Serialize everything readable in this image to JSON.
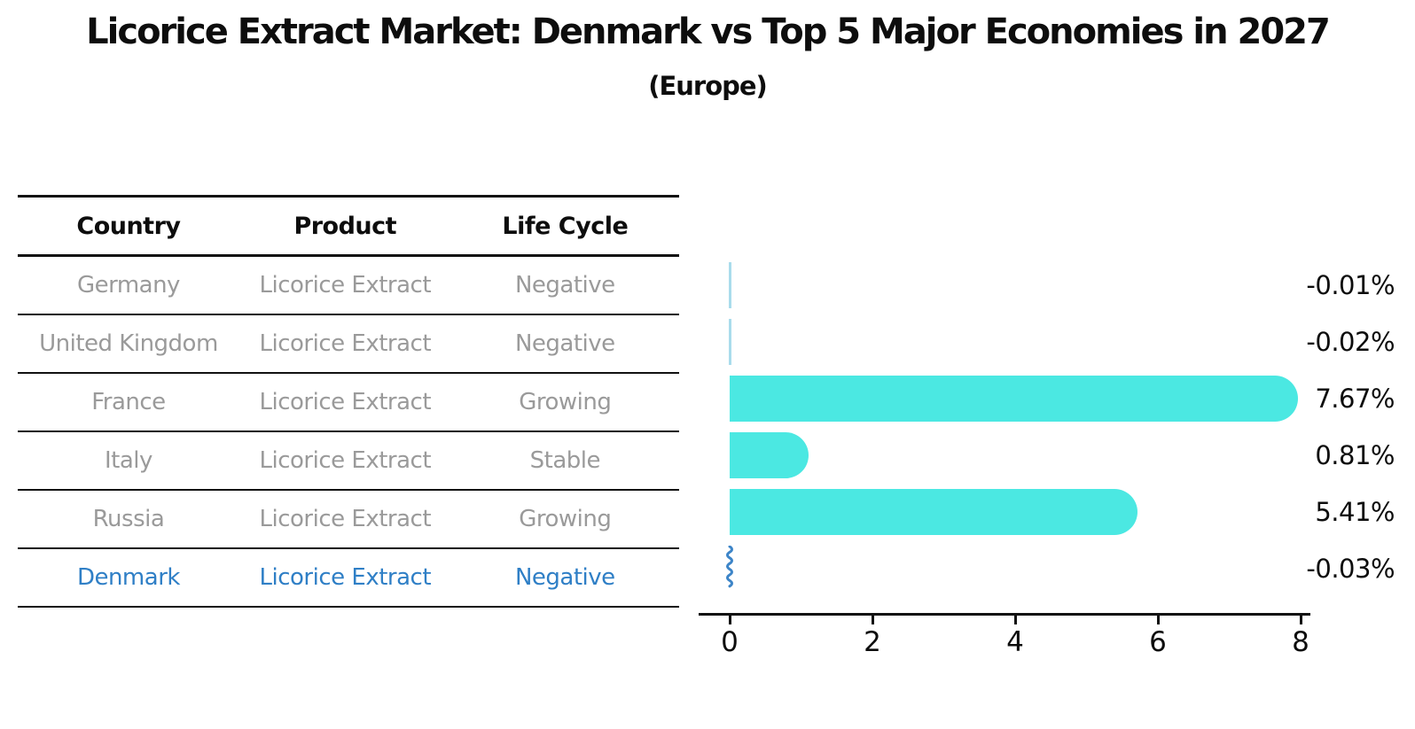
{
  "title": "Licorice Extract Market: Denmark vs Top 5 Major Economies in 2027",
  "subtitle": "(Europe)",
  "table": {
    "headers": [
      "Country",
      "Product",
      "Life Cycle"
    ],
    "rows": [
      {
        "country": "Germany",
        "product": "Licorice Extract",
        "life_cycle": "Negative",
        "highlight": false
      },
      {
        "country": "United Kingdom",
        "product": "Licorice Extract",
        "life_cycle": "Negative",
        "highlight": false
      },
      {
        "country": "France",
        "product": "Licorice Extract",
        "life_cycle": "Growing",
        "highlight": false
      },
      {
        "country": "Italy",
        "product": "Licorice Extract",
        "life_cycle": "Stable",
        "highlight": false
      },
      {
        "country": "Russia",
        "product": "Licorice Extract",
        "life_cycle": "Growing",
        "highlight": false
      },
      {
        "country": "Denmark",
        "product": "Licorice Extract",
        "life_cycle": "Negative",
        "highlight": true
      }
    ]
  },
  "chart_data": {
    "type": "bar",
    "orientation": "horizontal",
    "title": "Licorice Extract Market: Denmark vs Top 5 Major Economies in 2027 (Europe)",
    "categories": [
      "Germany",
      "United Kingdom",
      "France",
      "Italy",
      "Russia",
      "Denmark"
    ],
    "values": [
      -0.01,
      -0.02,
      7.67,
      0.81,
      5.41,
      -0.03
    ],
    "labels": [
      "-0.01%",
      "-0.02%",
      "7.67%",
      "0.81%",
      "5.41%",
      "-0.03%"
    ],
    "xlabel": "",
    "ylabel": "",
    "xlim": [
      0,
      8
    ],
    "xticks": [
      0,
      2,
      4,
      6,
      8
    ],
    "grid": false,
    "legend": false,
    "highlight_category": "Denmark",
    "colors": {
      "bar": "#4BE8E2",
      "tiny_bar": "#A9DCEC",
      "highlight_squiggle": "#3d85c8",
      "highlight_text": "#2f7fc6",
      "table_text": "#9a9a9a",
      "heading_text": "#0d0d0d",
      "axis": "#111111"
    }
  }
}
